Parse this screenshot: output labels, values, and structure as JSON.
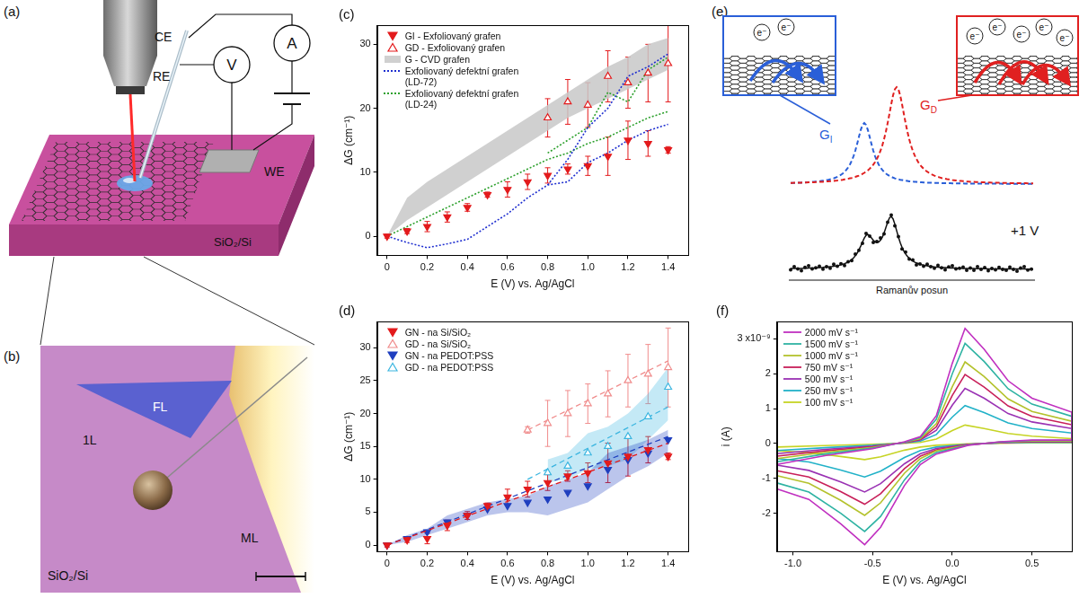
{
  "chart_data": [
    {
      "type": "scatter",
      "panel": "(c)",
      "x_label": "E (V) vs. Ag/AgCl",
      "y_label": "ΔG (cm⁻¹)",
      "xlim": [
        -0.05,
        1.5
      ],
      "xticks": [
        0,
        0.2,
        0.4,
        0.6,
        0.8,
        {
          "value": 1,
          "label": "1.0"
        },
        1.2,
        1.4
      ],
      "ylim": [
        -3,
        33
      ],
      "yticks": [
        0,
        10,
        20,
        30
      ],
      "grid": false,
      "legend": "upper left",
      "x": [
        0,
        0.1,
        0.2,
        0.3,
        0.4,
        0.5,
        0.6,
        0.7,
        0.8,
        0.9,
        1,
        1.1,
        1.2,
        1.3,
        1.4
      ],
      "series": [
        {
          "name": "GI - Exfoliovaný grafen",
          "type": "scatter",
          "marker": "triangle-down",
          "color": "#e31a1c",
          "values": [
            0,
            0.8,
            1.5,
            3,
            4.5,
            6.5,
            7.3,
            8.5,
            9.5,
            10.5,
            11,
            12.5,
            15,
            14.5,
            13.5
          ],
          "errors": [
            0.3,
            0.4,
            0.8,
            0.8,
            0.6,
            0.4,
            1.2,
            1.2,
            1.2,
            0.8,
            1.5,
            3,
            3,
            2,
            0.5
          ]
        },
        {
          "name": "GD - Exfoliovaný grafen",
          "type": "scatter",
          "marker": "triangle-up-open",
          "color": "#e31a1c",
          "x": [
            0.8,
            0.9,
            1,
            1.1,
            1.2,
            1.3,
            1.4
          ],
          "values": [
            18.5,
            21,
            20.5,
            25,
            24,
            25.5,
            27
          ],
          "errors": [
            3,
            3.5,
            3.5,
            4,
            4,
            4.5,
            6
          ]
        },
        {
          "name": "G - CVD grafen",
          "type": "band",
          "color": "#c8c8c8",
          "lower": [
            0,
            2.5,
            4.5,
            6.5,
            8.5,
            10.5,
            12.5,
            14.5,
            16.5,
            18.5,
            20,
            21.5,
            23,
            24.5,
            26
          ],
          "upper": [
            0,
            6,
            8.5,
            10.5,
            12.5,
            14.5,
            16.5,
            18.5,
            20.5,
            22.5,
            24.5,
            26.5,
            28,
            30,
            31
          ]
        },
        {
          "name": "Exfoliovaný defektní grafen (LD-72)",
          "type": "line",
          "line_style": "dotted",
          "color": "#1f2fd0",
          "values": [
            0,
            -1,
            -1.8,
            -1.2,
            -0.5,
            1.5,
            3.5,
            6,
            8,
            8.5,
            11.5,
            13,
            15,
            16.5,
            17.5
          ]
        },
        {
          "name": null,
          "type": "line",
          "line_style": "dotted",
          "color": "#1f2fd0",
          "x": [
            0.8,
            0.9,
            1,
            1.1,
            1.2,
            1.3,
            1.4
          ],
          "values": [
            8,
            12,
            17,
            20,
            25,
            26.5,
            28.5
          ]
        },
        {
          "name": "Exfoliovaný defektní grafen (LD-24)",
          "type": "line",
          "line_style": "dotted",
          "color": "#2ca02c",
          "values": [
            0,
            1.5,
            3,
            4.5,
            6,
            7.5,
            9,
            10.5,
            12,
            13,
            14.5,
            15.5,
            17,
            18.5,
            19.5
          ]
        },
        {
          "name": null,
          "type": "line",
          "line_style": "dotted",
          "color": "#2ca02c",
          "x": [
            0.8,
            0.9,
            1,
            1.1,
            1.2,
            1.3,
            1.4
          ],
          "values": [
            13,
            15,
            17,
            22.5,
            21,
            26,
            28
          ]
        }
      ]
    },
    {
      "type": "scatter",
      "panel": "(d)",
      "x_label": "E (V) vs. Ag/AgCl",
      "y_label": "ΔG (cm⁻¹)",
      "xlim": [
        -0.05,
        1.5
      ],
      "xticks": [
        0,
        0.2,
        0.4,
        0.6,
        0.8,
        {
          "value": 1,
          "label": "1.0"
        },
        1.2,
        1.4
      ],
      "ylim": [
        -1,
        34
      ],
      "yticks": [
        0,
        5,
        10,
        15,
        20,
        25,
        30
      ],
      "grid": false,
      "legend": "upper left",
      "x": [
        0,
        0.1,
        0.2,
        0.3,
        0.4,
        0.5,
        0.6,
        0.7,
        0.8,
        0.9,
        1,
        1.1,
        1.2,
        1.3,
        1.4
      ],
      "series": [
        {
          "name": "GN - na Si/SiO₂",
          "type": "scatter",
          "marker": "triangle-down",
          "color": "#e31a1c",
          "values": [
            0,
            0.8,
            1,
            3,
            4.5,
            6,
            7.3,
            8.5,
            9.5,
            10.5,
            11,
            12.5,
            13.5,
            14.5,
            13.5
          ],
          "errors": [
            0.3,
            0.4,
            0.8,
            0.8,
            0.6,
            0.4,
            1.2,
            1.2,
            1.2,
            0.8,
            1.5,
            3,
            3,
            2,
            0.5
          ],
          "fit": {
            "x": [
              0,
              1.4
            ],
            "values": [
              0,
              15.5
            ]
          }
        },
        {
          "name": "GD - na Si/SiO₂",
          "type": "scatter",
          "marker": "triangle-up-open",
          "color": "#f08c8c",
          "x": [
            0.7,
            0.8,
            0.9,
            1,
            1.1,
            1.2,
            1.3,
            1.4
          ],
          "values": [
            17.5,
            18.5,
            20,
            21.5,
            23,
            25,
            26,
            27
          ],
          "errors": [
            0.5,
            3.5,
            3.5,
            3,
            3.5,
            4,
            4.5,
            6
          ],
          "fit": {
            "x": [
              0.7,
              1.4
            ],
            "values": [
              17.5,
              28
            ]
          }
        },
        {
          "name": "GN - na PEDOT:PSS",
          "type": "scatter",
          "marker": "triangle-down",
          "color": "#1f3fbf",
          "values": [
            0,
            1,
            2,
            3.5,
            4.5,
            5.5,
            6,
            6.5,
            7,
            8,
            9,
            11.5,
            13,
            14,
            16
          ],
          "band": {
            "lower": [
              0,
              0.5,
              1.5,
              2.5,
              3.5,
              4.5,
              5,
              5,
              4.5,
              5.5,
              6.5,
              8.5,
              10.5,
              12,
              14
            ],
            "upper": [
              0,
              1.5,
              2.5,
              4.5,
              5.5,
              6.5,
              7,
              7.5,
              9,
              10,
              11,
              14,
              15,
              16,
              17.5
            ]
          },
          "fit": {
            "x": [
              0,
              1.4
            ],
            "values": [
              0,
              16.5
            ]
          }
        },
        {
          "name": "GD - na PEDOT:PSS",
          "type": "scatter",
          "marker": "triangle-up-open",
          "color": "#3cb6e0",
          "x": [
            0.8,
            0.9,
            1,
            1.1,
            1.2,
            1.3,
            1.4
          ],
          "values": [
            11,
            12,
            14,
            15,
            16.5,
            19.5,
            24
          ],
          "band": {
            "lower": [
              9.5,
              10,
              11.5,
              12,
              13,
              16,
              19
            ],
            "upper": [
              13,
              14,
              17,
              18,
              20,
              23,
              27
            ]
          },
          "fit": {
            "x": [
              0.7,
              1.4
            ],
            "values": [
              10,
              21
            ]
          }
        }
      ]
    },
    {
      "type": "line",
      "panel": "(f)",
      "x_label": "E (V) vs. Ag/AgCl",
      "y_label": "i (A)",
      "xlim": [
        -1.1,
        0.75
      ],
      "xticks": [
        {
          "value": -1,
          "label": "-1.0"
        },
        -0.5,
        {
          "value": 0,
          "label": "0.0"
        },
        0.5
      ],
      "ylim": [
        -3.1,
        3.5
      ],
      "yticks": [
        -2,
        -1,
        0,
        1,
        2,
        {
          "value": 3,
          "label": "3 x10⁻⁹"
        }
      ],
      "grid": false,
      "legend": "upper left",
      "x": [
        -1.1,
        -0.8,
        -0.5,
        -0.3,
        -0.2,
        -0.1,
        0,
        0.08,
        0.2,
        0.35,
        0.5,
        0.75,
        0.75,
        0.5,
        0.3,
        0.1,
        -0.1,
        -0.2,
        -0.3,
        -0.45,
        -0.55,
        -0.7,
        -0.9,
        -1.1
      ],
      "series": [
        {
          "name": "2000 mV s⁻¹",
          "color": "#c030c0",
          "line_style": "solid",
          "values": [
            -0.6,
            -0.35,
            -0.15,
            0.05,
            0.2,
            0.8,
            2.3,
            3.3,
            2.7,
            1.8,
            1.3,
            0.9,
            0.1,
            0.1,
            0.05,
            -0.05,
            -0.3,
            -0.6,
            -1.2,
            -2.4,
            -2.9,
            -2.3,
            -1.6,
            -1.3
          ]
        },
        {
          "name": "1500 mV s⁻¹",
          "color": "#2fb3a3",
          "line_style": "solid",
          "values": [
            -0.52,
            -0.3,
            -0.13,
            0.04,
            0.17,
            0.7,
            2,
            2.87,
            2.35,
            1.57,
            1.13,
            0.78,
            0.09,
            0.09,
            0.04,
            -0.04,
            -0.26,
            -0.52,
            -1.04,
            -2.09,
            -2.52,
            -2,
            -1.39,
            -1.13
          ]
        },
        {
          "name": "1000 mV s⁻¹",
          "color": "#b4c22c",
          "line_style": "solid",
          "values": [
            -0.43,
            -0.25,
            -0.11,
            0.04,
            0.14,
            0.57,
            1.63,
            2.34,
            1.92,
            1.28,
            0.92,
            0.64,
            0.07,
            0.07,
            0.04,
            -0.04,
            -0.21,
            -0.43,
            -0.85,
            -1.7,
            -2.06,
            -1.63,
            -1.14,
            -0.92
          ]
        },
        {
          "name": "750 mV s⁻¹",
          "color": "#c8205a",
          "line_style": "solid",
          "values": [
            -0.36,
            -0.21,
            -0.09,
            0.03,
            0.12,
            0.48,
            1.38,
            1.98,
            1.62,
            1.08,
            0.78,
            0.54,
            0.06,
            0.06,
            0.03,
            -0.03,
            -0.18,
            -0.36,
            -0.72,
            -1.44,
            -1.74,
            -1.38,
            -0.96,
            -0.78
          ]
        },
        {
          "name": "500 mV s⁻¹",
          "color": "#9a32b4",
          "line_style": "solid",
          "values": [
            -0.29,
            -0.17,
            -0.07,
            0.02,
            0.1,
            0.38,
            1.1,
            1.58,
            1.3,
            0.86,
            0.62,
            0.43,
            0.05,
            0.05,
            0.02,
            -0.02,
            -0.14,
            -0.29,
            -0.58,
            -1.15,
            -1.39,
            -1.1,
            -0.77,
            -0.62
          ]
        },
        {
          "name": "250 mV s⁻¹",
          "color": "#22b2c8",
          "line_style": "solid",
          "values": [
            -0.2,
            -0.12,
            -0.05,
            0.02,
            0.07,
            0.26,
            0.76,
            1.09,
            0.89,
            0.59,
            0.43,
            0.3,
            0.03,
            0.03,
            0.02,
            -0.02,
            -0.1,
            -0.2,
            -0.4,
            -0.79,
            -0.96,
            -0.76,
            -0.53,
            -0.43
          ]
        },
        {
          "name": "100 mV s⁻¹",
          "color": "#c6d424",
          "line_style": "solid",
          "values": [
            -0.1,
            -0.06,
            -0.02,
            0.01,
            0.03,
            0.13,
            0.37,
            0.53,
            0.43,
            0.29,
            0.21,
            0.14,
            0.02,
            0.02,
            0.01,
            -0.01,
            -0.05,
            -0.1,
            -0.19,
            -0.38,
            -0.46,
            -0.37,
            -0.26,
            -0.21
          ]
        }
      ]
    }
  ],
  "diagrams": {
    "a": {
      "panel": "(a)",
      "counter_electrode": "CE",
      "reference_electrode": "RE",
      "working_electrode": "WE",
      "voltmeter": "V",
      "ammeter": "A",
      "substrate": "SiO₂/Si"
    },
    "b": {
      "panel": "(b)",
      "few_layer": "FL",
      "monolayer": "1L",
      "multilayer": "ML",
      "substrate": "SiO₂/Si"
    },
    "e": {
      "panel": "(e)",
      "peaks": [
        {
          "symbol": "G",
          "sub": "I"
        },
        {
          "symbol": "G",
          "sub": "D"
        }
      ],
      "electron": "e⁻",
      "voltage": "+1 V",
      "x_label": "Ramanův posun"
    }
  }
}
